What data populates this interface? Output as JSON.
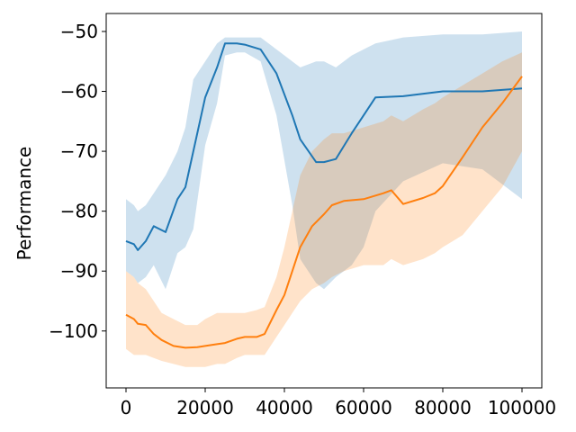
{
  "chart_data": {
    "type": "line",
    "title": "",
    "xlabel": "",
    "ylabel": "Performance",
    "xlim": [
      -5000,
      105000
    ],
    "ylim": [
      -109.5,
      -47
    ],
    "xticks": [
      0,
      20000,
      40000,
      60000,
      80000,
      100000
    ],
    "xtick_labels": [
      "0",
      "20000",
      "40000",
      "60000",
      "80000",
      "100000"
    ],
    "yticks": [
      -100,
      -90,
      -80,
      -70,
      -60,
      -50
    ],
    "ytick_labels": [
      "−100",
      "−90",
      "−80",
      "−70",
      "−60",
      "−50"
    ],
    "grid": false,
    "legend": "none",
    "series": [
      {
        "color": "#1f77b4",
        "x": [
          0,
          2000,
          3000,
          5000,
          7000,
          10000,
          13000,
          15000,
          17000,
          20000,
          23000,
          25000,
          28000,
          30000,
          34000,
          38000,
          42000,
          44000,
          48000,
          50000,
          53000,
          57000,
          60000,
          63000,
          70000,
          80000,
          90000,
          100000
        ],
        "mean": [
          -85,
          -85.5,
          -86.5,
          -85,
          -82.5,
          -83.5,
          -78,
          -76,
          -70,
          -61,
          -56,
          -52,
          -52,
          -52.2,
          -53,
          -57,
          -64,
          -68,
          -71.8,
          -71.8,
          -71.3,
          -67,
          -64,
          -61,
          -60.8,
          -60,
          -60,
          -59.5
        ],
        "upper": [
          -78,
          -79,
          -80,
          -79,
          -77,
          -74,
          -70,
          -66,
          -58,
          -55,
          -52,
          -51,
          -51,
          -51,
          -51,
          -53,
          -55,
          -56,
          -55,
          -55,
          -56,
          -54,
          -53,
          -52,
          -51,
          -50.5,
          -50.5,
          -50
        ],
        "lower": [
          -90,
          -91,
          -92,
          -91,
          -89,
          -93,
          -87,
          -86,
          -83,
          -69,
          -62,
          -54,
          -53.5,
          -53.5,
          -55,
          -64,
          -79,
          -88,
          -92,
          -93,
          -91,
          -89,
          -86,
          -80,
          -75,
          -72,
          -73,
          -78
        ]
      },
      {
        "color": "#ff7f0e",
        "x": [
          0,
          2000,
          3000,
          5000,
          7000,
          9000,
          12000,
          15000,
          18000,
          20000,
          23000,
          25000,
          28000,
          30000,
          33000,
          35000,
          38000,
          40000,
          42000,
          44000,
          47000,
          50000,
          52000,
          55000,
          60000,
          65000,
          67000,
          70000,
          75000,
          78000,
          80000,
          85000,
          90000,
          95000,
          100000
        ],
        "mean": [
          -97.3,
          -98,
          -98.8,
          -99,
          -100.5,
          -101.5,
          -102.5,
          -102.8,
          -102.7,
          -102.5,
          -102.2,
          -102,
          -101.3,
          -101,
          -101,
          -100.5,
          -96.5,
          -94,
          -90,
          -86,
          -82.5,
          -80.5,
          -79,
          -78.3,
          -78,
          -77,
          -76.5,
          -78.8,
          -77.8,
          -77,
          -75.8,
          -71,
          -66,
          -62,
          -57.5
        ],
        "upper": [
          -90,
          -91,
          -92,
          -93,
          -95,
          -97,
          -98,
          -99,
          -99,
          -98,
          -97,
          -97,
          -97,
          -97,
          -96.5,
          -96,
          -91,
          -86,
          -80,
          -74,
          -70,
          -68,
          -67,
          -67,
          -66,
          -65,
          -64,
          -65,
          -63,
          -62,
          -61,
          -59,
          -57,
          -55,
          -53.5
        ],
        "lower": [
          -103,
          -104,
          -104,
          -104,
          -104.5,
          -105,
          -105.5,
          -106,
          -106,
          -106,
          -105.5,
          -105.5,
          -104.5,
          -104,
          -104,
          -104,
          -101,
          -99,
          -97,
          -95,
          -93,
          -92,
          -91,
          -90,
          -89,
          -89,
          -88,
          -89,
          -88,
          -87,
          -86,
          -84,
          -80,
          -76,
          -70
        ]
      }
    ]
  }
}
